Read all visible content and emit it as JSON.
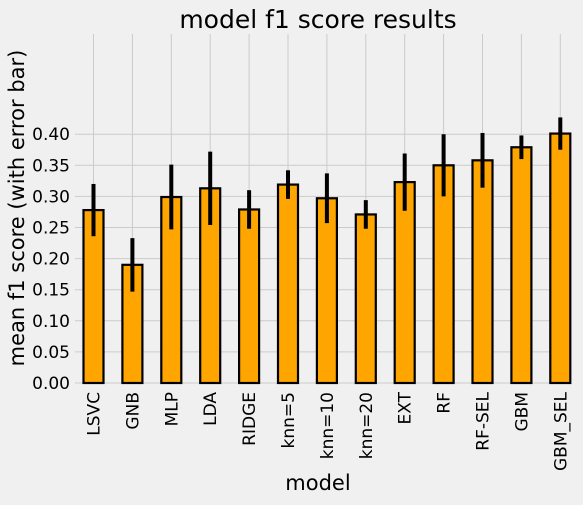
{
  "chart_data": {
    "type": "bar",
    "title": "model f1 score results",
    "xlabel": "model",
    "ylabel": "mean f1 score (with error bar)",
    "categories": [
      "LSVC",
      "GNB",
      "MLP",
      "LDA",
      "RIDGE",
      "knn=5",
      "knn=10",
      "knn=20",
      "EXT",
      "RF",
      "RF-SEL",
      "GBM",
      "GBM_SEL"
    ],
    "values": [
      0.278,
      0.19,
      0.299,
      0.313,
      0.279,
      0.319,
      0.297,
      0.271,
      0.323,
      0.35,
      0.358,
      0.379,
      0.401
    ],
    "error": [
      0.042,
      0.043,
      0.052,
      0.059,
      0.031,
      0.023,
      0.04,
      0.023,
      0.046,
      0.05,
      0.044,
      0.019,
      0.026
    ],
    "ylim": [
      0,
      0.44
    ],
    "yticks": [
      "0.00",
      "0.05",
      "0.10",
      "0.15",
      "0.20",
      "0.25",
      "0.30",
      "0.35",
      "0.40"
    ],
    "grid": true,
    "legend": "none",
    "colors": {
      "bar_fill": "#FFA500",
      "bar_edge": "#000000",
      "error_bar": "#000000",
      "grid": "#cbcbcb",
      "background": "#f0f0f0"
    }
  }
}
